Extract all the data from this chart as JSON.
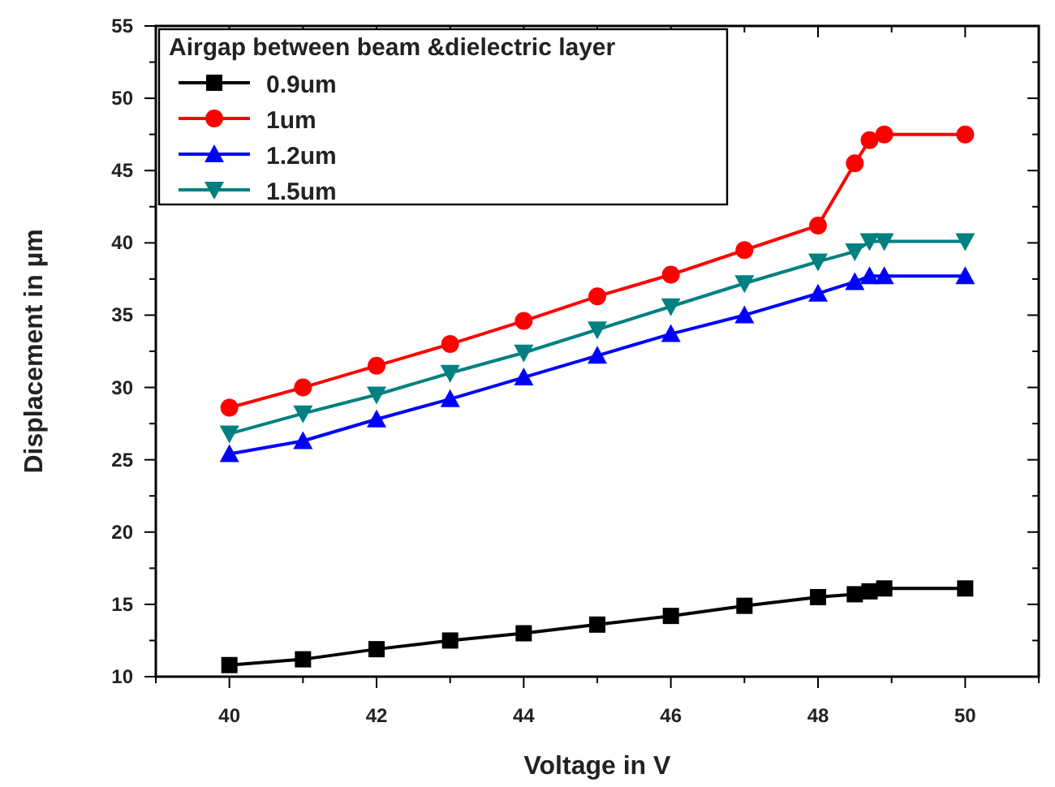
{
  "chart_data": {
    "type": "line",
    "xlabel": "Voltage in V",
    "ylabel": "Displacement in µm",
    "legend_title": "Airgap between beam &dielectric layer",
    "legend": "top left",
    "grid": false,
    "x": [
      40,
      41,
      42,
      43,
      44,
      45,
      46,
      47,
      48,
      48.5,
      48.7,
      48.9,
      50
    ],
    "xlim": [
      39,
      51
    ],
    "xticks": [
      {
        "value": 39,
        "label": null
      },
      40,
      {
        "value": 41,
        "label": null
      },
      42,
      {
        "value": 43,
        "label": null
      },
      44,
      {
        "value": 45,
        "label": null
      },
      46,
      {
        "value": 47,
        "label": null
      },
      48,
      {
        "value": 49,
        "label": null
      },
      50,
      {
        "value": 51,
        "label": null
      }
    ],
    "ylim": [
      10,
      55
    ],
    "yticks": [
      10,
      {
        "value": 12.5,
        "label": null
      },
      15,
      {
        "value": 17.5,
        "label": null
      },
      20,
      {
        "value": 22.5,
        "label": null
      },
      25,
      {
        "value": 27.5,
        "label": null
      },
      30,
      {
        "value": 32.5,
        "label": null
      },
      35,
      {
        "value": 37.5,
        "label": null
      },
      40,
      {
        "value": 42.5,
        "label": null
      },
      45,
      {
        "value": 47.5,
        "label": null
      },
      50,
      {
        "value": 52.5,
        "label": null
      },
      55
    ],
    "series": [
      {
        "name": "0.9um",
        "color": "#000000",
        "marker": "square",
        "values": [
          10.8,
          11.2,
          11.9,
          12.5,
          13.0,
          13.6,
          14.2,
          14.9,
          15.5,
          15.7,
          15.9,
          16.1,
          16.1
        ]
      },
      {
        "name": "1um",
        "color": "#ff0000",
        "marker": "circle",
        "values": [
          28.6,
          30.0,
          31.5,
          33.0,
          34.6,
          36.3,
          37.8,
          39.5,
          41.2,
          45.5,
          47.1,
          47.5,
          47.5
        ]
      },
      {
        "name": "1.2um",
        "color": "#0000ff",
        "marker": "triangle",
        "values": [
          25.4,
          26.3,
          27.8,
          29.2,
          30.7,
          32.2,
          33.7,
          35.0,
          36.5,
          37.3,
          37.7,
          37.7,
          37.7
        ]
      },
      {
        "name": "1.5um",
        "color": "#008080",
        "marker": "triangle-down",
        "values": [
          26.8,
          28.2,
          29.5,
          31.0,
          32.4,
          34.0,
          35.6,
          37.2,
          38.7,
          39.4,
          40.1,
          40.1,
          40.1
        ]
      }
    ]
  }
}
